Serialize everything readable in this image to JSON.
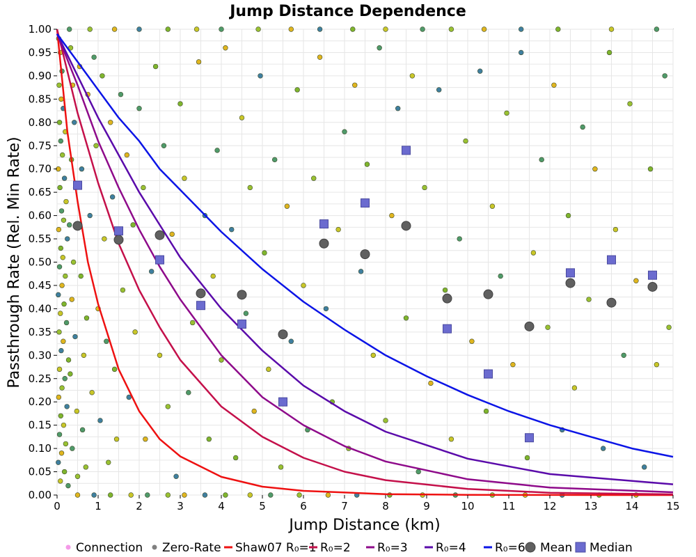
{
  "chart_data": {
    "type": "scatter",
    "title": "Jump Distance Dependence",
    "xlabel": "Jump Distance (km)",
    "ylabel": "Passthrough Rate (Rel. Min Rate)",
    "xlim": [
      0,
      15
    ],
    "ylim": [
      0,
      1
    ],
    "x_ticks": [
      "0",
      "1",
      "2",
      "3",
      "4",
      "5",
      "6",
      "7",
      "8",
      "9",
      "10",
      "11",
      "12",
      "13",
      "14",
      "15"
    ],
    "y_ticks": [
      "0.00",
      "0.05",
      "0.10",
      "0.15",
      "0.20",
      "0.25",
      "0.30",
      "0.35",
      "0.40",
      "0.45",
      "0.50",
      "0.55",
      "0.60",
      "0.65",
      "0.70",
      "0.75",
      "0.80",
      "0.85",
      "0.90",
      "0.95",
      "1.00"
    ],
    "grid": true,
    "legend_position": "bottom",
    "legend": [
      {
        "label": "Connection",
        "marker": "dot",
        "color": "#f49ae8"
      },
      {
        "label": "Zero-Rate",
        "marker": "dot",
        "color": "#808080"
      },
      {
        "label": "Shaw07 R₀=1",
        "marker": "line",
        "color": "#ee1111"
      },
      {
        "label": "R₀=2",
        "marker": "line",
        "color": "#c4104a"
      },
      {
        "label": "R₀=3",
        "marker": "line",
        "color": "#8e0a8a"
      },
      {
        "label": "R₀=4",
        "marker": "line",
        "color": "#5a0aaa"
      },
      {
        "label": "R₀=6",
        "marker": "line",
        "color": "#0b14e6"
      },
      {
        "label": "Mean",
        "marker": "circle",
        "color": "#606060"
      },
      {
        "label": "Median",
        "marker": "square",
        "color": "#6b6bcf"
      }
    ],
    "curves": [
      {
        "name": "Shaw07 R₀=1",
        "color": "#ee1111",
        "x": [
          0,
          0.25,
          0.5,
          0.75,
          1,
          1.5,
          2,
          2.5,
          3,
          4,
          5,
          6,
          8,
          10,
          12,
          15
        ],
        "y": [
          1.0,
          0.78,
          0.63,
          0.5,
          0.41,
          0.27,
          0.18,
          0.12,
          0.083,
          0.039,
          0.018,
          0.009,
          0.002,
          0.0005,
          0.0001,
          0.0
        ]
      },
      {
        "name": "R₀=2",
        "color": "#c4104a",
        "x": [
          0,
          0.5,
          1,
          1.5,
          2,
          2.5,
          3,
          4,
          5,
          6,
          7,
          8,
          10,
          12,
          15
        ],
        "y": [
          1.0,
          0.82,
          0.67,
          0.54,
          0.44,
          0.36,
          0.29,
          0.19,
          0.125,
          0.08,
          0.05,
          0.032,
          0.013,
          0.005,
          0.0015
        ]
      },
      {
        "name": "R₀=3",
        "color": "#8e0a8a",
        "x": [
          0,
          0.5,
          1,
          1.5,
          2,
          2.5,
          3,
          4,
          5,
          6,
          7,
          8,
          10,
          12,
          15
        ],
        "y": [
          0.99,
          0.88,
          0.76,
          0.66,
          0.57,
          0.49,
          0.42,
          0.3,
          0.21,
          0.15,
          0.105,
          0.072,
          0.034,
          0.016,
          0.006
        ]
      },
      {
        "name": "R₀=4",
        "color": "#5a0aaa",
        "x": [
          0,
          0.5,
          1,
          1.5,
          2,
          2.5,
          3,
          4,
          5,
          6,
          7,
          8,
          10,
          12,
          15
        ],
        "y": [
          0.99,
          0.9,
          0.81,
          0.73,
          0.65,
          0.58,
          0.51,
          0.4,
          0.31,
          0.235,
          0.18,
          0.136,
          0.078,
          0.045,
          0.023
        ]
      },
      {
        "name": "R₀=6",
        "color": "#0b14e6",
        "x": [
          0,
          0.5,
          1,
          1.5,
          2,
          2.5,
          3,
          4,
          5,
          6,
          7,
          8,
          9,
          10,
          11,
          12,
          13,
          14,
          15
        ],
        "y": [
          0.99,
          0.93,
          0.87,
          0.81,
          0.76,
          0.7,
          0.655,
          0.565,
          0.485,
          0.415,
          0.355,
          0.3,
          0.255,
          0.215,
          0.18,
          0.15,
          0.125,
          0.1,
          0.082
        ]
      }
    ],
    "mean": {
      "x": [
        0.5,
        1.5,
        2.5,
        3.5,
        4.5,
        5.5,
        6.5,
        7.5,
        8.5,
        9.5,
        10.5,
        11.5,
        12.5,
        13.5,
        14.5
      ],
      "y": [
        0.578,
        0.548,
        0.558,
        0.433,
        0.43,
        0.345,
        0.54,
        0.517,
        0.578,
        0.422,
        0.431,
        0.362,
        0.455,
        0.413,
        0.447
      ]
    },
    "median": {
      "x": [
        0.5,
        1.5,
        2.5,
        3.5,
        4.5,
        5.5,
        6.5,
        7.5,
        8.5,
        9.5,
        10.5,
        11.5,
        12.5,
        13.5,
        14.5
      ],
      "y": [
        0.665,
        0.567,
        0.505,
        0.407,
        0.367,
        0.2,
        0.582,
        0.627,
        0.74,
        0.357,
        0.26,
        0.123,
        0.477,
        0.505,
        0.472
      ]
    },
    "scatter_colors": [
      "#7fb52d",
      "#c9c628",
      "#4f9a6a",
      "#9ac132",
      "#e0b51f",
      "#3f7fa0"
    ],
    "scatter_points": [
      [
        0.04,
        0.98
      ],
      [
        0.08,
        0.95
      ],
      [
        0.12,
        0.91
      ],
      [
        0.05,
        0.88
      ],
      [
        0.1,
        0.85
      ],
      [
        0.15,
        0.83
      ],
      [
        0.06,
        0.8
      ],
      [
        0.2,
        0.78
      ],
      [
        0.09,
        0.76
      ],
      [
        0.13,
        0.73
      ],
      [
        0.03,
        0.7
      ],
      [
        0.18,
        0.68
      ],
      [
        0.07,
        0.66
      ],
      [
        0.22,
        0.63
      ],
      [
        0.11,
        0.61
      ],
      [
        0.16,
        0.59
      ],
      [
        0.04,
        0.57
      ],
      [
        0.25,
        0.55
      ],
      [
        0.09,
        0.53
      ],
      [
        0.14,
        0.51
      ],
      [
        0.06,
        0.49
      ],
      [
        0.2,
        0.47
      ],
      [
        0.12,
        0.45
      ],
      [
        0.03,
        0.43
      ],
      [
        0.17,
        0.41
      ],
      [
        0.08,
        0.39
      ],
      [
        0.23,
        0.37
      ],
      [
        0.05,
        0.35
      ],
      [
        0.15,
        0.33
      ],
      [
        0.1,
        0.31
      ],
      [
        0.28,
        0.29
      ],
      [
        0.06,
        0.27
      ],
      [
        0.19,
        0.25
      ],
      [
        0.12,
        0.23
      ],
      [
        0.04,
        0.21
      ],
      [
        0.24,
        0.19
      ],
      [
        0.09,
        0.17
      ],
      [
        0.16,
        0.15
      ],
      [
        0.06,
        0.13
      ],
      [
        0.21,
        0.11
      ],
      [
        0.11,
        0.09
      ],
      [
        0.03,
        0.07
      ],
      [
        0.18,
        0.05
      ],
      [
        0.08,
        0.03
      ],
      [
        0.27,
        0.02
      ],
      [
        0.33,
        0.96
      ],
      [
        0.38,
        0.88
      ],
      [
        0.42,
        0.8
      ],
      [
        0.35,
        0.72
      ],
      [
        0.45,
        0.66
      ],
      [
        0.3,
        0.58
      ],
      [
        0.4,
        0.5
      ],
      [
        0.36,
        0.42
      ],
      [
        0.44,
        0.34
      ],
      [
        0.32,
        0.26
      ],
      [
        0.48,
        0.18
      ],
      [
        0.37,
        0.1
      ],
      [
        0.5,
        0.04
      ],
      [
        0.55,
        0.92
      ],
      [
        0.6,
        0.7
      ],
      [
        0.58,
        0.47
      ],
      [
        0.65,
        0.3
      ],
      [
        0.62,
        0.14
      ],
      [
        0.7,
        0.06
      ],
      [
        0.75,
        0.86
      ],
      [
        0.8,
        0.6
      ],
      [
        0.72,
        0.38
      ],
      [
        0.85,
        0.22
      ],
      [
        0.9,
        0.94
      ],
      [
        0.95,
        0.75
      ],
      [
        1.0,
        0.4
      ],
      [
        1.05,
        0.16
      ],
      [
        1.1,
        0.9
      ],
      [
        1.15,
        0.55
      ],
      [
        1.2,
        0.33
      ],
      [
        1.25,
        0.07
      ],
      [
        1.3,
        0.8
      ],
      [
        1.35,
        0.64
      ],
      [
        1.4,
        0.27
      ],
      [
        1.45,
        0.12
      ],
      [
        1.55,
        0.86
      ],
      [
        1.6,
        0.44
      ],
      [
        1.7,
        0.73
      ],
      [
        1.75,
        0.21
      ],
      [
        1.85,
        0.58
      ],
      [
        1.9,
        0.35
      ],
      [
        2.0,
        0.83
      ],
      [
        2.1,
        0.66
      ],
      [
        2.15,
        0.12
      ],
      [
        2.3,
        0.48
      ],
      [
        2.4,
        0.92
      ],
      [
        2.5,
        0.3
      ],
      [
        2.6,
        0.75
      ],
      [
        2.7,
        0.19
      ],
      [
        2.8,
        0.56
      ],
      [
        2.9,
        0.04
      ],
      [
        3.0,
        0.84
      ],
      [
        3.1,
        0.68
      ],
      [
        3.2,
        0.22
      ],
      [
        3.3,
        0.37
      ],
      [
        3.45,
        0.93
      ],
      [
        3.6,
        0.6
      ],
      [
        3.7,
        0.12
      ],
      [
        3.8,
        0.47
      ],
      [
        3.9,
        0.74
      ],
      [
        4.0,
        0.29
      ],
      [
        4.1,
        0.96
      ],
      [
        4.25,
        0.57
      ],
      [
        4.35,
        0.08
      ],
      [
        4.5,
        0.81
      ],
      [
        4.6,
        0.39
      ],
      [
        4.7,
        0.66
      ],
      [
        4.8,
        0.18
      ],
      [
        4.95,
        0.9
      ],
      [
        5.05,
        0.52
      ],
      [
        5.15,
        0.27
      ],
      [
        5.3,
        0.72
      ],
      [
        5.45,
        0.06
      ],
      [
        5.6,
        0.62
      ],
      [
        5.7,
        0.33
      ],
      [
        5.85,
        0.87
      ],
      [
        6.0,
        0.45
      ],
      [
        6.1,
        0.14
      ],
      [
        6.25,
        0.68
      ],
      [
        6.4,
        0.94
      ],
      [
        6.55,
        0.4
      ],
      [
        6.7,
        0.2
      ],
      [
        6.85,
        0.57
      ],
      [
        7.0,
        0.78
      ],
      [
        7.1,
        0.1
      ],
      [
        7.25,
        0.88
      ],
      [
        7.4,
        0.48
      ],
      [
        7.55,
        0.71
      ],
      [
        7.7,
        0.3
      ],
      [
        7.85,
        0.96
      ],
      [
        8.0,
        0.16
      ],
      [
        8.15,
        0.6
      ],
      [
        8.3,
        0.83
      ],
      [
        8.5,
        0.38
      ],
      [
        8.65,
        0.9
      ],
      [
        8.8,
        0.05
      ],
      [
        8.95,
        0.66
      ],
      [
        9.1,
        0.24
      ],
      [
        9.3,
        0.87
      ],
      [
        9.45,
        0.44
      ],
      [
        9.6,
        0.12
      ],
      [
        9.8,
        0.55
      ],
      [
        9.95,
        0.76
      ],
      [
        10.1,
        0.33
      ],
      [
        10.3,
        0.91
      ],
      [
        10.45,
        0.18
      ],
      [
        10.6,
        0.62
      ],
      [
        10.8,
        0.47
      ],
      [
        10.95,
        0.82
      ],
      [
        11.1,
        0.28
      ],
      [
        11.3,
        0.95
      ],
      [
        11.45,
        0.08
      ],
      [
        11.6,
        0.52
      ],
      [
        11.8,
        0.72
      ],
      [
        11.95,
        0.36
      ],
      [
        12.1,
        0.88
      ],
      [
        12.3,
        0.14
      ],
      [
        12.45,
        0.6
      ],
      [
        12.6,
        0.23
      ],
      [
        12.8,
        0.79
      ],
      [
        12.95,
        0.42
      ],
      [
        13.1,
        0.7
      ],
      [
        13.3,
        0.1
      ],
      [
        13.45,
        0.95
      ],
      [
        13.6,
        0.57
      ],
      [
        13.8,
        0.3
      ],
      [
        13.95,
        0.84
      ],
      [
        14.1,
        0.46
      ],
      [
        14.3,
        0.06
      ],
      [
        14.45,
        0.7
      ],
      [
        14.6,
        0.28
      ],
      [
        14.8,
        0.9
      ],
      [
        14.9,
        0.36
      ],
      [
        0.5,
        0.0
      ],
      [
        0.9,
        0.0
      ],
      [
        1.3,
        0.0
      ],
      [
        1.8,
        0.0
      ],
      [
        2.2,
        0.0
      ],
      [
        2.7,
        0.0
      ],
      [
        3.1,
        0.0
      ],
      [
        3.6,
        0.0
      ],
      [
        4.1,
        0.0
      ],
      [
        4.7,
        0.0
      ],
      [
        5.2,
        0.0
      ],
      [
        5.9,
        0.0
      ],
      [
        6.6,
        0.0
      ],
      [
        7.3,
        0.0
      ],
      [
        8.1,
        0.0
      ],
      [
        8.9,
        0.0
      ],
      [
        9.7,
        0.0
      ],
      [
        10.6,
        0.0
      ],
      [
        11.4,
        0.0
      ],
      [
        12.3,
        0.0
      ],
      [
        13.2,
        0.0
      ],
      [
        14.1,
        0.0
      ],
      [
        0.3,
        1.0
      ],
      [
        0.8,
        1.0
      ],
      [
        1.4,
        1.0
      ],
      [
        2.0,
        1.0
      ],
      [
        2.7,
        1.0
      ],
      [
        3.4,
        1.0
      ],
      [
        4.0,
        1.0
      ],
      [
        4.9,
        1.0
      ],
      [
        5.7,
        1.0
      ],
      [
        6.4,
        1.0
      ],
      [
        7.2,
        1.0
      ],
      [
        8.0,
        1.0
      ],
      [
        8.9,
        1.0
      ],
      [
        9.6,
        1.0
      ],
      [
        10.4,
        1.0
      ],
      [
        11.3,
        1.0
      ],
      [
        12.2,
        1.0
      ],
      [
        13.5,
        1.0
      ],
      [
        14.6,
        1.0
      ]
    ]
  }
}
